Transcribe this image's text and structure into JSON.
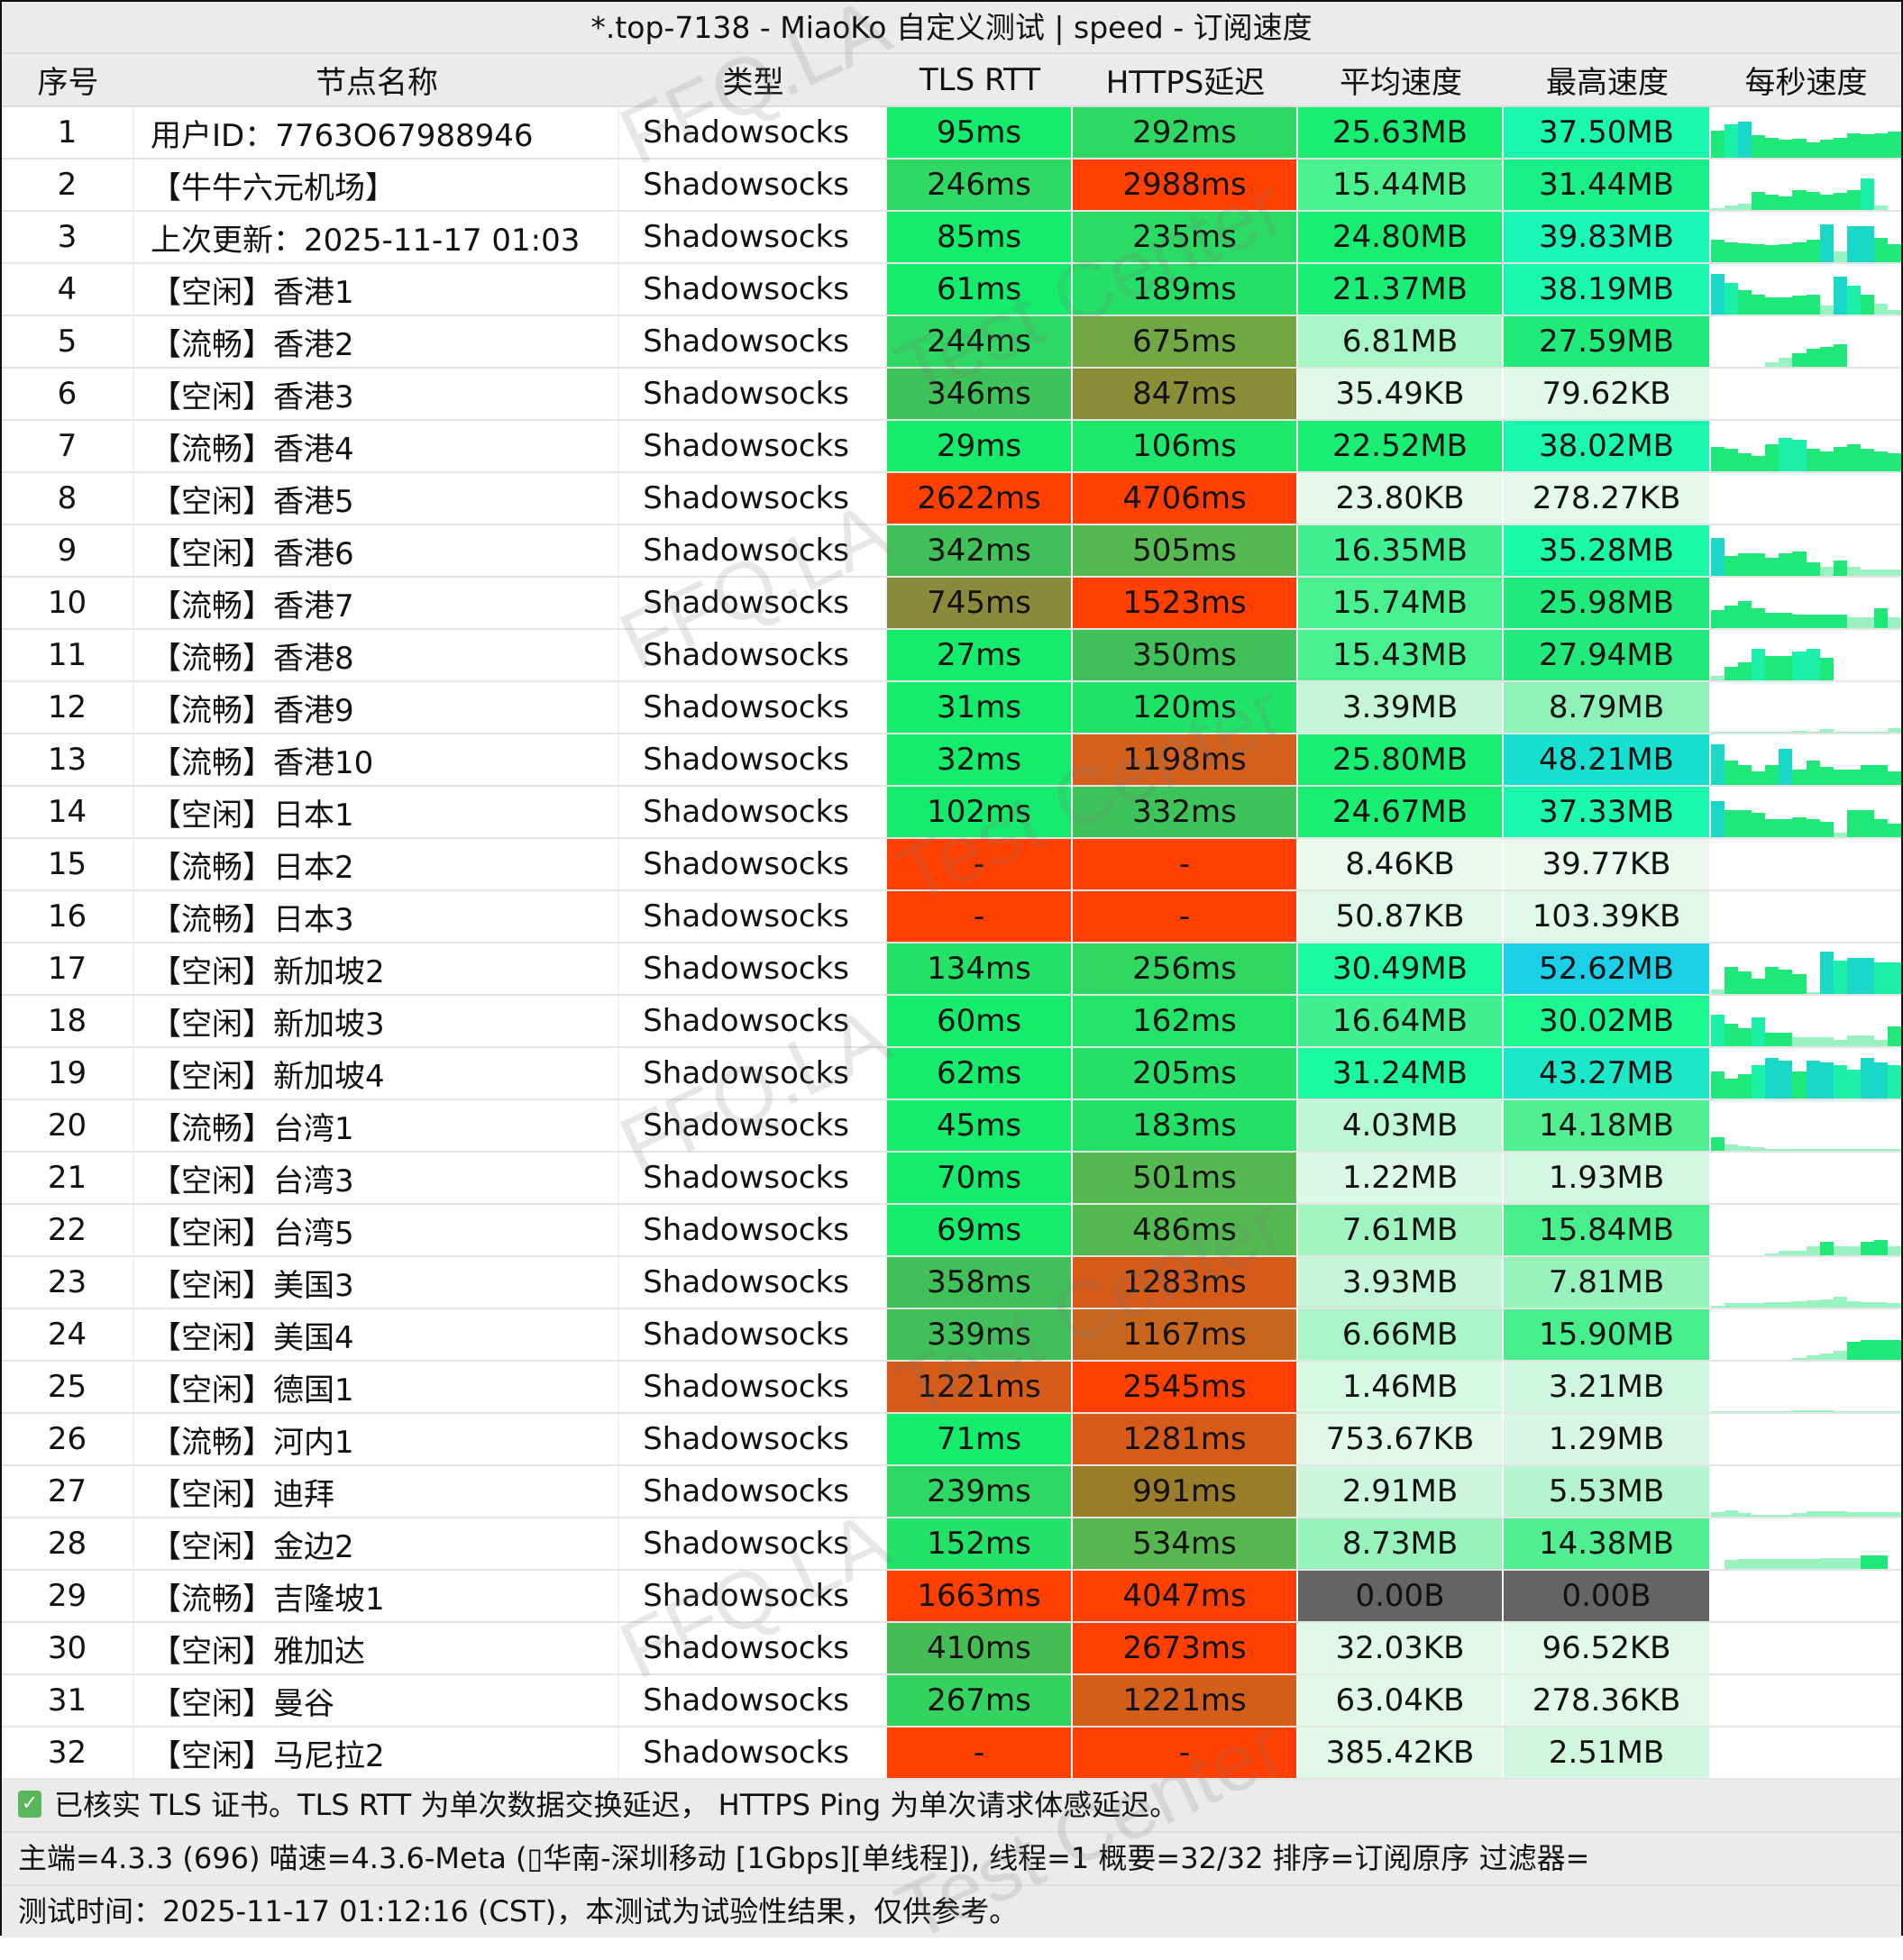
{
  "window": {
    "title": "*.top-7138 - MiaoKo 自定义测试 | speed - 订阅速度"
  },
  "table": {
    "headers": [
      "序号",
      "节点名称",
      "类型",
      "TLS RTT",
      "HTTPS延迟",
      "平均速度",
      "最高速度",
      "每秒速度"
    ],
    "rows": [
      {
        "idx": "1",
        "name": "用户ID：7763O67988946",
        "type": "Shadowsocks",
        "tls": "95ms",
        "https": "292ms",
        "avg": "25.63MB",
        "max": "37.50MB",
        "tls_color": "#14ec6c",
        "https_color": "#2fd862",
        "avg_color": "#18ef72",
        "max_color": "#1af8b0",
        "spark": [
          60,
          75,
          80,
          50,
          45,
          40,
          42,
          35,
          40,
          45,
          55,
          52,
          55,
          58
        ]
      },
      {
        "idx": "2",
        "name": "【牛牛六元机场】",
        "type": "Shadowsocks",
        "tls": "246ms",
        "https": "2988ms",
        "avg": "15.44MB",
        "max": "31.44MB",
        "tls_color": "#2fd862",
        "https_color": "#ff4000",
        "avg_color": "#4af28e",
        "max_color": "#18ef88",
        "spark": [
          5,
          10,
          15,
          40,
          35,
          30,
          45,
          40,
          35,
          38,
          45,
          70,
          10,
          0
        ]
      },
      {
        "idx": "3",
        "name": "上次更新：2025-11-17 01:03",
        "type": "Shadowsocks",
        "tls": "85ms",
        "https": "235ms",
        "avg": "24.80MB",
        "max": "39.83MB",
        "tls_color": "#14ec6c",
        "https_color": "#2cdb63",
        "avg_color": "#18ef72",
        "max_color": "#1af8b8",
        "spark": [
          50,
          45,
          42,
          40,
          38,
          40,
          45,
          50,
          85,
          25,
          80,
          80,
          55,
          40
        ]
      },
      {
        "idx": "4",
        "name": "【空闲】香港1",
        "type": "Shadowsocks",
        "tls": "61ms",
        "https": "189ms",
        "avg": "21.37MB",
        "max": "38.19MB",
        "tls_color": "#14ec6c",
        "https_color": "#24e066",
        "avg_color": "#1aee74",
        "max_color": "#1af8b0",
        "spark": [
          90,
          70,
          55,
          45,
          38,
          38,
          42,
          45,
          20,
          85,
          65,
          45,
          25,
          10
        ]
      },
      {
        "idx": "5",
        "name": "【流畅】香港2",
        "type": "Shadowsocks",
        "tls": "244ms",
        "https": "675ms",
        "avg": "6.81MB",
        "max": "27.59MB",
        "tls_color": "#2fd862",
        "https_color": "#72a844",
        "avg_color": "#a8f5c6",
        "max_color": "#20eb7a",
        "spark": [
          0,
          0,
          0,
          0,
          10,
          20,
          30,
          40,
          45,
          50,
          0,
          0,
          0,
          0
        ]
      },
      {
        "idx": "6",
        "name": "【空闲】香港3",
        "type": "Shadowsocks",
        "tls": "346ms",
        "https": "847ms",
        "avg": "35.49KB",
        "max": "79.62KB",
        "tls_color": "#3ec25a",
        "https_color": "#8a8e36",
        "avg_color": "#e0f8ea",
        "max_color": "#e0f8ea",
        "spark": []
      },
      {
        "idx": "7",
        "name": "【流畅】香港4",
        "type": "Shadowsocks",
        "tls": "29ms",
        "https": "106ms",
        "avg": "22.52MB",
        "max": "38.02MB",
        "tls_color": "#14ec6c",
        "https_color": "#1ee86a",
        "avg_color": "#1aee74",
        "max_color": "#1af8b0",
        "spark": [
          55,
          50,
          40,
          35,
          60,
          75,
          70,
          50,
          45,
          55,
          60,
          50,
          45,
          40
        ]
      },
      {
        "idx": "8",
        "name": "【空闲】香港5",
        "type": "Shadowsocks",
        "tls": "2622ms",
        "https": "4706ms",
        "avg": "23.80KB",
        "max": "278.27KB",
        "tls_color": "#ff4000",
        "https_color": "#ff4000",
        "avg_color": "#e4f8ec",
        "max_color": "#e4f8ec",
        "spark": []
      },
      {
        "idx": "9",
        "name": "【空闲】香港6",
        "type": "Shadowsocks",
        "tls": "342ms",
        "https": "505ms",
        "avg": "16.35MB",
        "max": "35.28MB",
        "tls_color": "#40c058",
        "https_color": "#56b850",
        "avg_color": "#40f090",
        "max_color": "#1af8a8",
        "spark": [
          85,
          45,
          50,
          50,
          40,
          50,
          55,
          30,
          20,
          35,
          20,
          15,
          15,
          15
        ]
      },
      {
        "idx": "10",
        "name": "【流畅】香港7",
        "type": "Shadowsocks",
        "tls": "745ms",
        "https": "1523ms",
        "avg": "15.74MB",
        "max": "25.98MB",
        "tls_color": "#8a8a3c",
        "https_color": "#ff4000",
        "avg_color": "#48f090",
        "max_color": "#20eb7a",
        "spark": [
          40,
          50,
          60,
          45,
          35,
          35,
          30,
          30,
          30,
          30,
          25,
          25,
          45,
          25
        ]
      },
      {
        "idx": "11",
        "name": "【流畅】香港8",
        "type": "Shadowsocks",
        "tls": "27ms",
        "https": "350ms",
        "avg": "15.43MB",
        "max": "27.94MB",
        "tls_color": "#14ec6c",
        "https_color": "#40c058",
        "avg_color": "#48f090",
        "max_color": "#20eb7a",
        "spark": [
          10,
          30,
          40,
          70,
          55,
          55,
          65,
          70,
          50,
          0,
          0,
          0,
          0,
          0
        ]
      },
      {
        "idx": "12",
        "name": "【流畅】香港9",
        "type": "Shadowsocks",
        "tls": "31ms",
        "https": "120ms",
        "avg": "3.39MB",
        "max": "8.79MB",
        "tls_color": "#14ec6c",
        "https_color": "#20e468",
        "avg_color": "#c6f6da",
        "max_color": "#90f2b8",
        "spark": [
          3,
          3,
          3,
          3,
          3,
          3,
          5,
          3,
          8,
          3,
          3,
          3,
          3,
          10
        ]
      },
      {
        "idx": "13",
        "name": "【流畅】香港10",
        "type": "Shadowsocks",
        "tls": "32ms",
        "https": "1198ms",
        "avg": "25.80MB",
        "max": "48.21MB",
        "tls_color": "#14ec6c",
        "https_color": "#d4601c",
        "avg_color": "#18ef72",
        "max_color": "#18e0d0",
        "spark": [
          90,
          55,
          45,
          30,
          45,
          80,
          35,
          55,
          40,
          35,
          35,
          45,
          45,
          30
        ]
      },
      {
        "idx": "14",
        "name": "【空闲】日本1",
        "type": "Shadowsocks",
        "tls": "102ms",
        "https": "332ms",
        "avg": "24.67MB",
        "max": "37.33MB",
        "tls_color": "#16ea6c",
        "https_color": "#3ec25a",
        "avg_color": "#18ef72",
        "max_color": "#1af8b0",
        "spark": [
          80,
          60,
          60,
          55,
          40,
          40,
          45,
          40,
          35,
          10,
          60,
          60,
          40,
          30
        ]
      },
      {
        "idx": "15",
        "name": "【流畅】日本2",
        "type": "Shadowsocks",
        "tls": "-",
        "https": "-",
        "avg": "8.46KB",
        "max": "39.77KB",
        "tls_color": "#ff4000",
        "https_color": "#ff4000",
        "avg_color": "#eaf8f0",
        "max_color": "#eaf8f0",
        "spark": []
      },
      {
        "idx": "16",
        "name": "【流畅】日本3",
        "type": "Shadowsocks",
        "tls": "-",
        "https": "-",
        "avg": "50.87KB",
        "max": "103.39KB",
        "tls_color": "#ff4000",
        "https_color": "#ff4000",
        "avg_color": "#e0f8ea",
        "max_color": "#e0f8ea",
        "spark": []
      },
      {
        "idx": "17",
        "name": "【空闲】新加坡2",
        "type": "Shadowsocks",
        "tls": "134ms",
        "https": "256ms",
        "avg": "30.49MB",
        "max": "52.62MB",
        "tls_color": "#22e268",
        "https_color": "#30d862",
        "avg_color": "#1af8a0",
        "max_color": "#1ad0e8",
        "spark": [
          10,
          60,
          50,
          35,
          60,
          55,
          45,
          5,
          95,
          75,
          80,
          80,
          70,
          70
        ]
      },
      {
        "idx": "18",
        "name": "【空闲】新加坡3",
        "type": "Shadowsocks",
        "tls": "60ms",
        "https": "162ms",
        "avg": "16.64MB",
        "max": "30.02MB",
        "tls_color": "#14ec6c",
        "https_color": "#22e468",
        "avg_color": "#40f090",
        "max_color": "#1af890",
        "spark": [
          70,
          50,
          40,
          65,
          30,
          30,
          20,
          20,
          20,
          15,
          25,
          25,
          15,
          45
        ]
      },
      {
        "idx": "19",
        "name": "【空闲】新加坡4",
        "type": "Shadowsocks",
        "tls": "62ms",
        "https": "205ms",
        "avg": "31.24MB",
        "max": "43.27MB",
        "tls_color": "#14ec6c",
        "https_color": "#26e068",
        "avg_color": "#1af8a0",
        "max_color": "#1ae8c8",
        "spark": [
          60,
          45,
          55,
          75,
          90,
          85,
          60,
          85,
          80,
          75,
          65,
          90,
          80,
          75
        ]
      },
      {
        "idx": "20",
        "name": "【流畅】台湾1",
        "type": "Shadowsocks",
        "tls": "45ms",
        "https": "183ms",
        "avg": "4.03MB",
        "max": "14.18MB",
        "tls_color": "#14ec6c",
        "https_color": "#24e066",
        "avg_color": "#bff6d6",
        "max_color": "#50ee90",
        "spark": [
          30,
          15,
          10,
          8,
          5,
          5,
          5,
          5,
          5,
          5,
          5,
          5,
          5,
          5
        ]
      },
      {
        "idx": "21",
        "name": "【空闲】台湾3",
        "type": "Shadowsocks",
        "tls": "70ms",
        "https": "501ms",
        "avg": "1.22MB",
        "max": "1.93MB",
        "tls_color": "#14ec6c",
        "https_color": "#56b850",
        "avg_color": "#dcf8e8",
        "max_color": "#d4f6e2",
        "spark": []
      },
      {
        "idx": "22",
        "name": "【空闲】台湾5",
        "type": "Shadowsocks",
        "tls": "69ms",
        "https": "486ms",
        "avg": "7.61MB",
        "max": "15.84MB",
        "tls_color": "#14ec6c",
        "https_color": "#52ba50",
        "avg_color": "#a0f4c0",
        "max_color": "#48ee8c",
        "spark": [
          0,
          0,
          0,
          0,
          5,
          10,
          10,
          20,
          30,
          20,
          20,
          30,
          35,
          20
        ]
      },
      {
        "idx": "23",
        "name": "【空闲】美国3",
        "type": "Shadowsocks",
        "tls": "358ms",
        "https": "1283ms",
        "avg": "3.93MB",
        "max": "7.81MB",
        "tls_color": "#40c058",
        "https_color": "#d65a18",
        "avg_color": "#c6f6da",
        "max_color": "#98f2bc",
        "spark": [
          5,
          10,
          10,
          10,
          12,
          12,
          14,
          16,
          18,
          25,
          15,
          12,
          12,
          10
        ]
      },
      {
        "idx": "24",
        "name": "【空闲】美国4",
        "type": "Shadowsocks",
        "tls": "339ms",
        "https": "1167ms",
        "avg": "6.66MB",
        "max": "15.90MB",
        "tls_color": "#40c058",
        "https_color": "#c8661e",
        "avg_color": "#aaf4c8",
        "max_color": "#48ee8c",
        "spark": [
          0,
          0,
          0,
          0,
          0,
          0,
          5,
          10,
          15,
          20,
          40,
          45,
          45,
          45
        ]
      },
      {
        "idx": "25",
        "name": "【空闲】德国1",
        "type": "Shadowsocks",
        "tls": "1221ms",
        "https": "2545ms",
        "avg": "1.46MB",
        "max": "3.21MB",
        "tls_color": "#d65a18",
        "https_color": "#ff4000",
        "avg_color": "#d8f8e6",
        "max_color": "#cff6e0",
        "spark": [
          2,
          2,
          2,
          2,
          2,
          3,
          4,
          5,
          4,
          3,
          2,
          2,
          2,
          2
        ]
      },
      {
        "idx": "26",
        "name": "【流畅】河内1",
        "type": "Shadowsocks",
        "tls": "71ms",
        "https": "1281ms",
        "avg": "753.67KB",
        "max": "1.29MB",
        "tls_color": "#14ec6c",
        "https_color": "#d65a18",
        "avg_color": "#e0f8ea",
        "max_color": "#d8f6e6",
        "spark": []
      },
      {
        "idx": "27",
        "name": "【空闲】迪拜",
        "type": "Shadowsocks",
        "tls": "239ms",
        "https": "991ms",
        "avg": "2.91MB",
        "max": "5.53MB",
        "tls_color": "#2fd862",
        "https_color": "#9a7c2a",
        "avg_color": "#ccf6de",
        "max_color": "#b4f4ce",
        "spark": [
          10,
          15,
          8,
          5,
          5,
          5,
          8,
          12,
          12,
          12,
          10,
          10,
          10,
          10
        ]
      },
      {
        "idx": "28",
        "name": "【空闲】金边2",
        "type": "Shadowsocks",
        "tls": "152ms",
        "https": "534ms",
        "avg": "8.73MB",
        "max": "14.38MB",
        "tls_color": "#22e268",
        "https_color": "#58b650",
        "avg_color": "#98f2bc",
        "max_color": "#50ee90",
        "spark": [
          0,
          20,
          22,
          22,
          22,
          22,
          22,
          22,
          25,
          25,
          25,
          30,
          30,
          0
        ]
      },
      {
        "idx": "29",
        "name": "【流畅】吉隆坡1",
        "type": "Shadowsocks",
        "tls": "1663ms",
        "https": "4047ms",
        "avg": "0.00B",
        "max": "0.00B",
        "tls_color": "#ff4000",
        "https_color": "#ff4000",
        "avg_color": "#646464",
        "max_color": "#646464",
        "spark": []
      },
      {
        "idx": "30",
        "name": "【空闲】雅加达",
        "type": "Shadowsocks",
        "tls": "410ms",
        "https": "2673ms",
        "avg": "32.03KB",
        "max": "96.52KB",
        "tls_color": "#46bc54",
        "https_color": "#ff4000",
        "avg_color": "#e0f8ea",
        "max_color": "#e0f8ea",
        "spark": []
      },
      {
        "idx": "31",
        "name": "【空闲】曼谷",
        "type": "Shadowsocks",
        "tls": "267ms",
        "https": "1221ms",
        "avg": "63.04KB",
        "max": "278.36KB",
        "tls_color": "#34d25e",
        "https_color": "#d25e1a",
        "avg_color": "#e0f8ea",
        "max_color": "#e0f8ea",
        "spark": []
      },
      {
        "idx": "32",
        "name": "【空闲】马尼拉2",
        "type": "Shadowsocks",
        "tls": "-",
        "https": "-",
        "avg": "385.42KB",
        "max": "2.51MB",
        "tls_color": "#ff4000",
        "https_color": "#ff4000",
        "avg_color": "#e0f8ea",
        "max_color": "#d0f6e0",
        "spark": []
      }
    ]
  },
  "footer": {
    "verified_icon": "check-icon",
    "line1": "已核实 TLS 证书。TLS RTT 为单次数据交换延迟， HTTPS Ping 为单次请求体感延迟。",
    "line2": "主端=4.3.3 (696) 喵速=4.3.6-Meta (▯华南-深圳移动 [1Gbps][单线程]), 线程=1 概要=32/32 排序=订阅原序 过滤器=",
    "line3": "测试时间：2025-11-17 01:12:16 (CST)，本测试为试验性结果，仅供参考。"
  },
  "watermarks": [
    "FFQ.LA",
    "Test Center"
  ]
}
